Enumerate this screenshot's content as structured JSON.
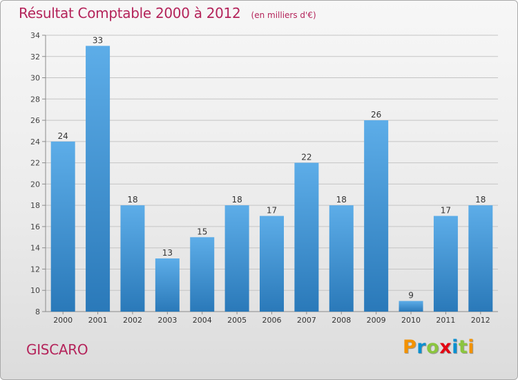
{
  "title": "Résultat Comptable 2000 à 2012",
  "subtitle": "(en milliers d'€)",
  "commune": "GISCARO",
  "logo": {
    "text": "Proxiti",
    "letters": [
      {
        "char": "P",
        "color": "#f39200"
      },
      {
        "char": "r",
        "color": "#0a8fd0"
      },
      {
        "char": "o",
        "color": "#8bc53f"
      },
      {
        "char": "x",
        "color": "#e30613"
      },
      {
        "char": "i",
        "color": "#0a8fd0"
      },
      {
        "char": "t",
        "color": "#8bc53f"
      },
      {
        "char": "i",
        "color": "#f39200"
      }
    ]
  },
  "colors": {
    "title": "#b4235a",
    "bar_dark": "#2a79b9",
    "bar_light": "#5dade8",
    "axis": "#8a8a8a",
    "grid": "#c4c4c4"
  },
  "chart_data": {
    "type": "bar",
    "title": "Résultat Comptable 2000 à 2012",
    "subtitle": "(en milliers d'€)",
    "xlabel": "",
    "ylabel": "",
    "categories": [
      "2000",
      "2001",
      "2002",
      "2003",
      "2004",
      "2005",
      "2006",
      "2007",
      "2008",
      "2009",
      "2010",
      "2011",
      "2012"
    ],
    "values": [
      24,
      33,
      18,
      13,
      15,
      18,
      17,
      22,
      18,
      26,
      9,
      17,
      18
    ],
    "ylim": [
      8,
      34
    ],
    "yticks": [
      8,
      10,
      12,
      14,
      16,
      18,
      20,
      22,
      24,
      26,
      28,
      30,
      32,
      34
    ],
    "grid": true,
    "data_labels": true
  }
}
